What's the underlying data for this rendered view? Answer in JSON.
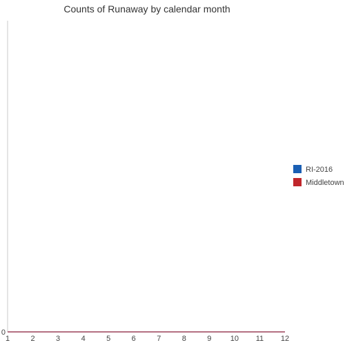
{
  "chart_data": {
    "type": "line",
    "title": "Counts of Runaway by calendar month",
    "xlabel": "",
    "ylabel": "",
    "x": [
      1,
      2,
      3,
      4,
      5,
      6,
      7,
      8,
      9,
      10,
      11,
      12
    ],
    "xlim": [
      1,
      12
    ],
    "ylim": [
      0,
      1
    ],
    "y_ticks": [
      0
    ],
    "grid": false,
    "legend_position": "right",
    "series": [
      {
        "name": "RI-2016",
        "color": "#1a5fb4",
        "values": [
          0,
          0,
          0,
          0,
          0,
          0,
          0,
          0,
          0,
          0,
          0,
          0
        ]
      },
      {
        "name": "Middletown",
        "color": "#c0262b",
        "values": [
          0,
          0,
          0,
          0,
          0,
          0,
          0,
          0,
          0,
          0,
          0,
          0
        ]
      }
    ]
  }
}
